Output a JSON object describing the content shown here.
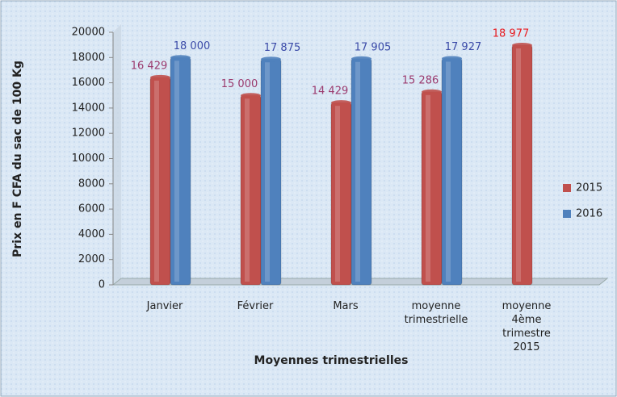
{
  "chart_data": {
    "type": "bar",
    "y_label": "Prix en F CFA du sac de 100 Kg",
    "x_label": "Moyennes trimestrielles",
    "categories": [
      "Janvier",
      "Février",
      "Mars",
      "moyenne trimestrielle",
      "moyenne 4ème trimestre 2015"
    ],
    "series": [
      {
        "name": "2015",
        "color": "#c0504d",
        "values": [
          16429,
          15000,
          14429,
          15286,
          18977
        ],
        "value_labels": [
          "16 429",
          "15 000",
          "14 429",
          "15 286",
          "18 977"
        ],
        "value_label_colors": [
          "#9b3a6e",
          "#9b3a6e",
          "#9b3a6e",
          "#9b3a6e",
          "#e8191e"
        ]
      },
      {
        "name": "2016",
        "color": "#4f81bd",
        "values": [
          18000,
          17875,
          17905,
          17927,
          null
        ],
        "value_labels": [
          "18 000",
          "17 875",
          "17 905",
          "17 927",
          null
        ],
        "value_label_colors": [
          "#3a4aa8",
          "#3a4aa8",
          "#3a4aa8",
          "#3a4aa8",
          null
        ]
      }
    ],
    "ylim": [
      0,
      20000
    ],
    "yticks": [
      0,
      2000,
      4000,
      6000,
      8000,
      10000,
      12000,
      14000,
      16000,
      18000,
      20000
    ],
    "grid": false,
    "legend": "right"
  }
}
